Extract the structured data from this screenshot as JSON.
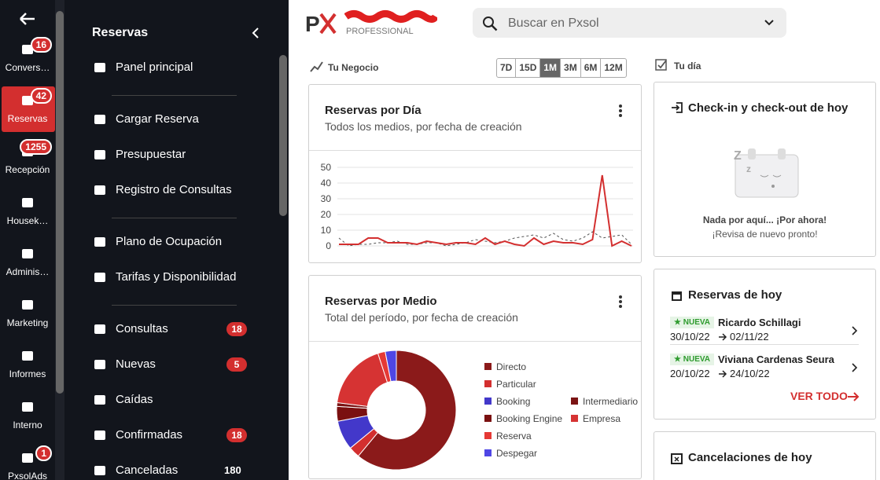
{
  "rail": {
    "active": 1,
    "items": [
      {
        "label": "Convers…",
        "badge": 16
      },
      {
        "label": "Reservas",
        "badge": 42
      },
      {
        "label": "Recepción",
        "badge": 1255
      },
      {
        "label": "Housek…"
      },
      {
        "label": "Adminis…"
      },
      {
        "label": "Marketing"
      },
      {
        "label": "Informes"
      },
      {
        "label": "Interno"
      },
      {
        "label": "PxsolAds",
        "badge": 1
      }
    ]
  },
  "menu": {
    "title": "Reservas",
    "items": [
      {
        "label": "Panel principal"
      },
      {
        "label": "Cargar Reserva"
      },
      {
        "label": "Presupuestar"
      },
      {
        "label": "Registro de Consultas"
      },
      {
        "label": "Plano de Ocupación"
      },
      {
        "label": "Tarifas y Disponibilidad"
      },
      {
        "label": "Consultas",
        "badge": 18
      },
      {
        "label": "Nuevas",
        "badge": 5
      },
      {
        "label": "Caídas"
      },
      {
        "label": "Confirmadas",
        "badge": 18
      },
      {
        "label": "Canceladas",
        "badge": 180,
        "badge_plain": true
      }
    ]
  },
  "header": {
    "edition": "PROFESSIONAL",
    "search_placeholder": "Buscar en Pxsol"
  },
  "business": {
    "label": "Tu Negocio",
    "ranges": [
      "7D",
      "15D",
      "1M",
      "3M",
      "6M",
      "12M"
    ],
    "active_range": 2
  },
  "chart_data": [
    {
      "type": "line",
      "title": "Reservas por Día",
      "subtitle": "Todos los medios, por fecha de creación",
      "categories": [
        null,
        null,
        null,
        null,
        null,
        null,
        null,
        null,
        null,
        null,
        null,
        null,
        null,
        null,
        null,
        null,
        null,
        null,
        null,
        null,
        null,
        null,
        null,
        null,
        null,
        null,
        null,
        null,
        null,
        null,
        null
      ],
      "series": [
        {
          "color": "#d32f2f",
          "style": "solid",
          "values": [
            1,
            1,
            1,
            5,
            5,
            2,
            2,
            2,
            1,
            3,
            2,
            1,
            2,
            2,
            1,
            5,
            1,
            3,
            1,
            0,
            5,
            1,
            3,
            2,
            2,
            1,
            4,
            45,
            0,
            3,
            0
          ]
        },
        {
          "color": "#555555",
          "style": "dashed",
          "values": [
            5,
            0,
            1,
            1,
            2,
            2,
            3,
            1,
            1,
            2,
            2,
            0,
            1,
            2,
            4,
            3,
            2,
            3,
            5,
            6,
            7,
            5,
            8,
            4,
            3,
            5,
            9,
            5,
            6,
            7,
            1
          ]
        }
      ],
      "ylim": [
        0,
        50
      ],
      "yticks": [
        0,
        10,
        20,
        30,
        40,
        50
      ],
      "grid": true
    },
    {
      "type": "pie",
      "donut": true,
      "title": "Reservas por Medio",
      "subtitle": "Total del período, por fecha de creación",
      "categories": [
        "Directo",
        "Particular",
        "Booking",
        "Booking Engine",
        "Intermediario",
        "Empresa",
        "Reserva",
        "Despegar"
      ],
      "values": [
        61,
        3,
        8,
        4,
        1,
        18,
        2,
        3
      ],
      "colors": [
        "#8b1a1a",
        "#d32f2f",
        "#4338ca",
        "#7a1010",
        "#7b1414",
        "#d63333",
        "#e53935",
        "#4f46e5"
      ]
    }
  ],
  "today": {
    "label": "Tu día",
    "checkin": {
      "title": "Check-in y check-out de hoy",
      "empty_title": "Nada por aquí... ¡Por ahora!",
      "empty_text": "¡Revisa de nuevo pronto!"
    },
    "reservations": {
      "title": "Reservas de hoy",
      "items": [
        {
          "tag": "NUEVA",
          "name": "Ricardo Schillagi",
          "from": "30/10/22",
          "to": "02/11/22"
        },
        {
          "tag": "NUEVA",
          "name": "Viviana Cardenas Seura",
          "from": "20/10/22",
          "to": "24/10/22"
        }
      ],
      "link": "VER TODO"
    },
    "cancellations": {
      "title": "Cancelaciones de hoy"
    }
  }
}
